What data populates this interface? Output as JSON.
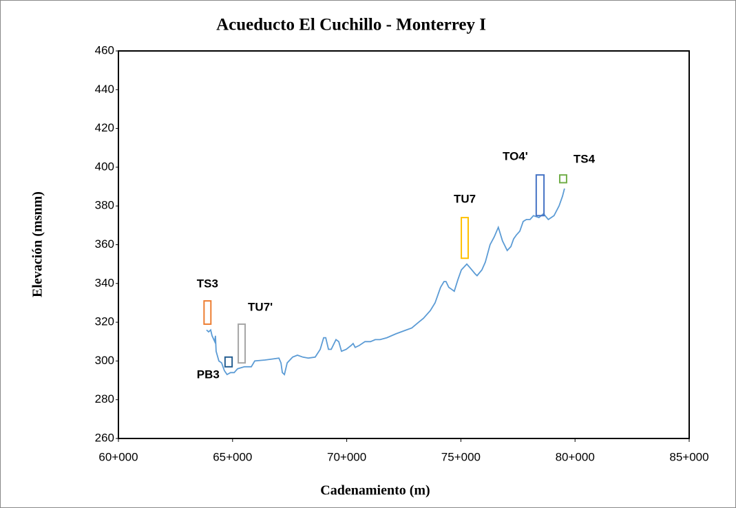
{
  "chart_data": {
    "type": "line",
    "title": "Acueducto El Cuchillo - Monterrey I",
    "x_label": "Cadenamiento (m)",
    "y_label": "Elevación (msnm)",
    "xlim": [
      60000,
      85000
    ],
    "xticks": [
      {
        "value": 60000,
        "label": "60+000"
      },
      {
        "value": 65000,
        "label": "65+000"
      },
      {
        "value": 70000,
        "label": "70+000"
      },
      {
        "value": 75000,
        "label": "75+000"
      },
      {
        "value": 80000,
        "label": "80+000"
      },
      {
        "value": 85000,
        "label": "85+000"
      }
    ],
    "ylim": [
      260,
      460
    ],
    "yticks": [
      260,
      280,
      300,
      320,
      340,
      360,
      380,
      400,
      420,
      440,
      460
    ],
    "series": [
      {
        "color": "#5b9bd5",
        "x": [
          63860,
          63950,
          64040,
          64100,
          64220,
          64250,
          64280,
          64400,
          64520,
          64640,
          64760,
          64910,
          65070,
          65220,
          65520,
          65820,
          65970,
          66420,
          66730,
          67030,
          67120,
          67180,
          67270,
          67390,
          67630,
          67840,
          68080,
          68320,
          68620,
          68840,
          68990,
          69080,
          69200,
          69320,
          69530,
          69650,
          69770,
          69980,
          70190,
          70280,
          70370,
          70550,
          70800,
          71040,
          71250,
          71460,
          71760,
          72150,
          72610,
          72850,
          73150,
          73360,
          73660,
          73870,
          74110,
          74260,
          74350,
          74470,
          74590,
          74710,
          74870,
          75020,
          75260,
          75410,
          75620,
          75710,
          75920,
          76070,
          76280,
          76460,
          76640,
          76820,
          77030,
          77190,
          77310,
          77430,
          77580,
          77730,
          77870,
          78030,
          78180,
          78420,
          78620,
          78830,
          79080,
          79300,
          79450,
          79540
        ],
        "values": [
          316,
          315,
          316,
          313,
          310,
          313,
          305,
          300,
          299,
          295,
          293,
          294,
          294,
          296,
          297,
          297,
          300,
          300.5,
          301,
          301.5,
          299,
          294,
          293,
          299,
          302,
          303,
          302,
          301.5,
          302,
          306,
          312,
          312,
          306,
          306,
          311,
          310,
          305,
          306,
          308,
          309,
          307,
          308,
          310,
          310,
          311,
          311,
          312,
          314,
          316,
          317,
          320,
          322,
          326,
          330,
          338,
          341,
          341,
          338,
          337,
          336,
          342,
          347,
          350,
          348,
          345,
          344,
          347,
          351,
          360,
          364,
          369,
          362,
          357,
          359,
          363,
          365,
          367,
          372,
          373,
          373,
          375,
          374,
          376,
          373,
          375,
          380,
          385,
          389
        ]
      }
    ],
    "annotations": [
      {
        "label": "TS3",
        "color": "#ed7d31",
        "x": [
          63750,
          64050
        ],
        "y": [
          319,
          331
        ]
      },
      {
        "label": "TU7'",
        "color": "#a5a5a5",
        "x": [
          65250,
          65550
        ],
        "y": [
          299,
          319
        ]
      },
      {
        "label": "PB3",
        "color": "#255e91",
        "x": [
          64670,
          64980
        ],
        "y": [
          297,
          302
        ]
      },
      {
        "label": "TU7",
        "color": "#ffc000",
        "x": [
          75020,
          75320
        ],
        "y": [
          353,
          374
        ]
      },
      {
        "label": "TO4'",
        "color": "#4472c4",
        "x": [
          78300,
          78640
        ],
        "y": [
          375,
          396
        ]
      },
      {
        "label": "TS4",
        "color": "#70ad47",
        "x": [
          79330,
          79630
        ],
        "y": [
          392,
          396
        ]
      }
    ]
  }
}
